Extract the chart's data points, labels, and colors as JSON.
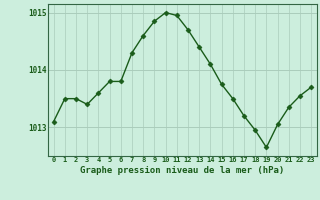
{
  "x": [
    0,
    1,
    2,
    3,
    4,
    5,
    6,
    7,
    8,
    9,
    10,
    11,
    12,
    13,
    14,
    15,
    16,
    17,
    18,
    19,
    20,
    21,
    22,
    23
  ],
  "y": [
    1013.1,
    1013.5,
    1013.5,
    1013.4,
    1013.6,
    1013.8,
    1013.8,
    1014.3,
    1014.6,
    1014.85,
    1015.0,
    1014.95,
    1014.7,
    1014.4,
    1014.1,
    1013.75,
    1013.5,
    1013.2,
    1012.95,
    1012.65,
    1013.05,
    1013.35,
    1013.55,
    1013.7
  ],
  "bg_color": "#cceedd",
  "line_color": "#1a5c1a",
  "marker_color": "#1a5c1a",
  "grid_color": "#99ccbb",
  "grid_color_v": "#bbddcc",
  "xlabel": "Graphe pression niveau de la mer (hPa)",
  "xlabel_color": "#1a5c1a",
  "tick_color": "#1a5c1a",
  "ylim": [
    1012.5,
    1015.15
  ],
  "yticks": [
    1013,
    1014,
    1015
  ],
  "xlim": [
    -0.5,
    23.5
  ],
  "xticks": [
    0,
    1,
    2,
    3,
    4,
    5,
    6,
    7,
    8,
    9,
    10,
    11,
    12,
    13,
    14,
    15,
    16,
    17,
    18,
    19,
    20,
    21,
    22,
    23
  ],
  "xtick_labels": [
    "0",
    "1",
    "2",
    "3",
    "4",
    "5",
    "6",
    "7",
    "8",
    "9",
    "10",
    "11",
    "12",
    "13",
    "14",
    "15",
    "16",
    "17",
    "18",
    "19",
    "20",
    "21",
    "22",
    "23"
  ]
}
